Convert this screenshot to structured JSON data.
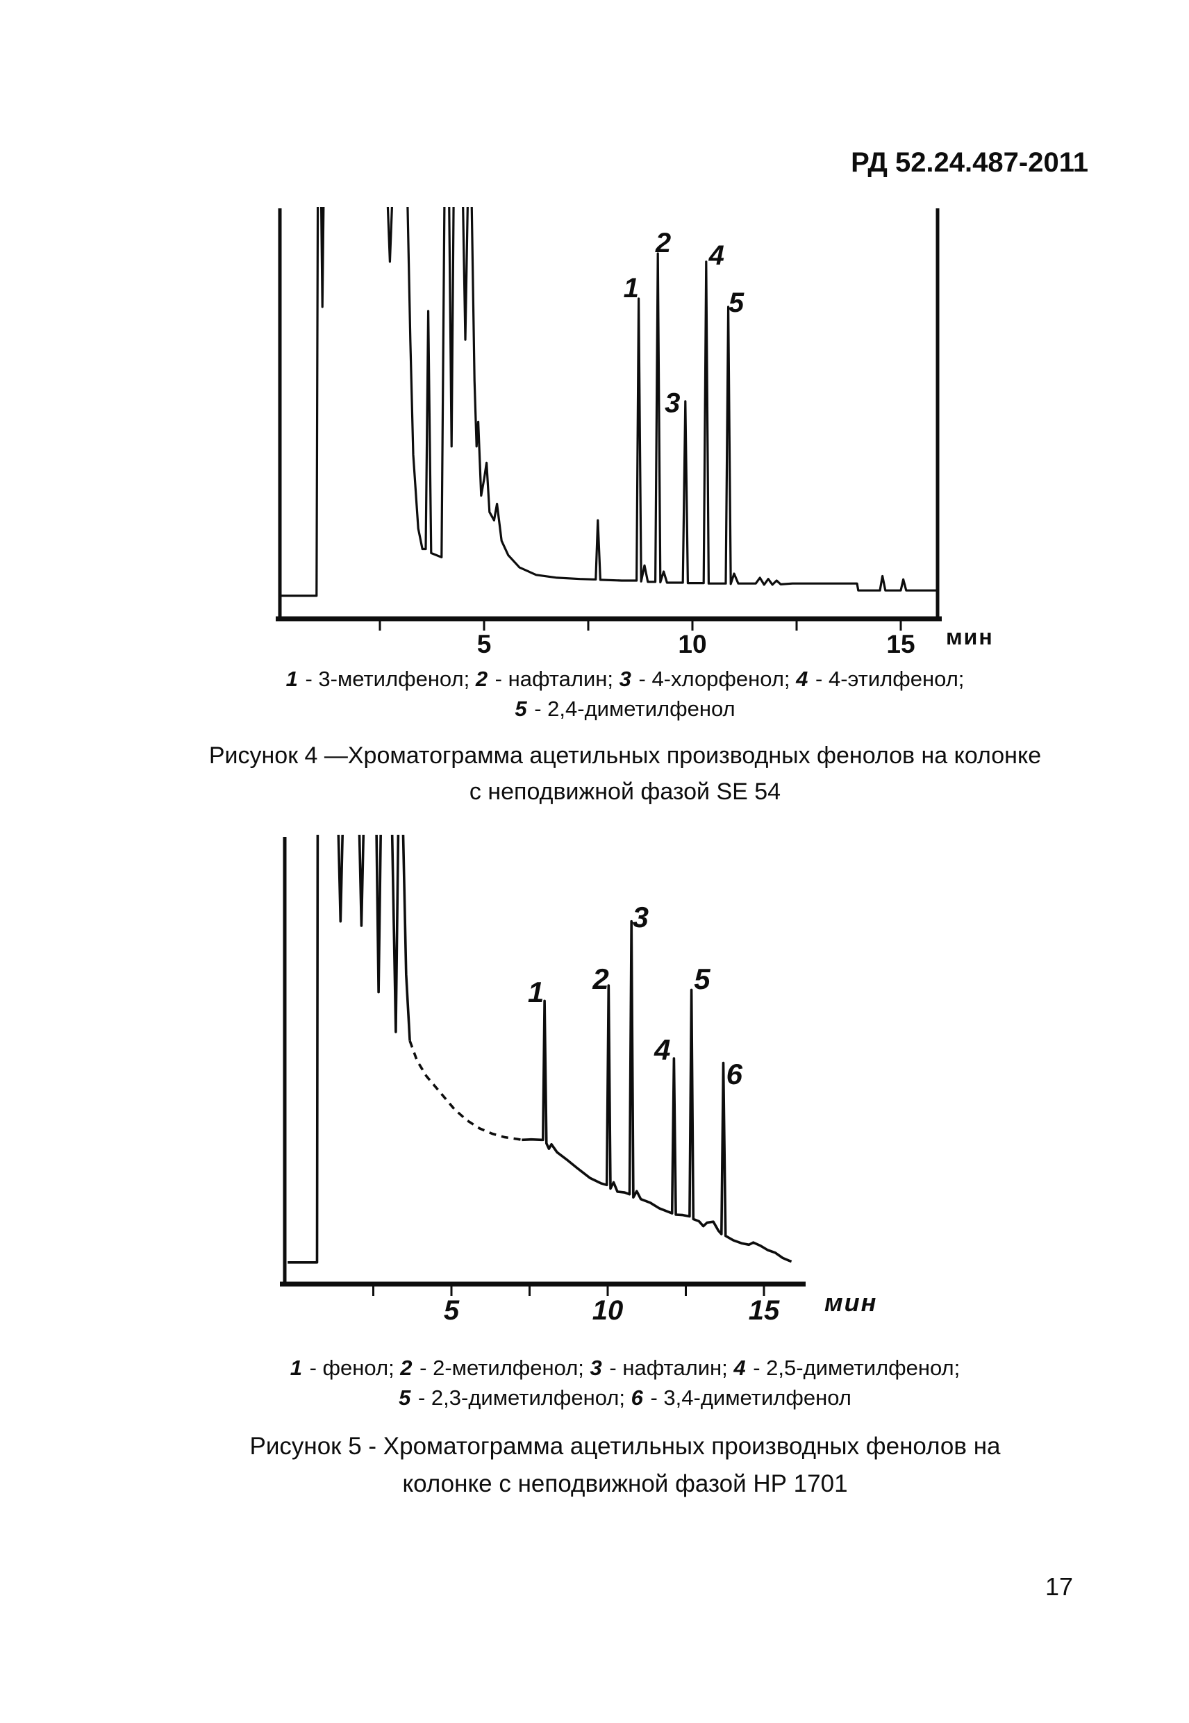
{
  "page": {
    "header": "РД 52.24.487-2011",
    "page_number": "17"
  },
  "figure4": {
    "legend_lines": [
      [
        {
          "num": "1",
          "name": "3-метилфенол"
        },
        {
          "num": "2",
          "name": "нафталин"
        },
        {
          "num": "3",
          "name": "4-хлорфенол"
        },
        {
          "num": "4",
          "name": "4-этилфенол"
        }
      ],
      [
        {
          "num": "5",
          "name": "2,4-диметилфенол"
        }
      ]
    ],
    "caption_lines": [
      "Рисунок 4 —Хроматограмма ацетильных производных фенолов на колонке",
      "с неподвижной фазой SE 54"
    ]
  },
  "figure5": {
    "legend_lines": [
      [
        {
          "num": "1",
          "name": "фенол"
        },
        {
          "num": "2",
          "name": "2-метилфенол"
        },
        {
          "num": "3",
          "name": "нафталин"
        },
        {
          "num": "4",
          "name": "2,5-диметилфенол"
        }
      ],
      [
        {
          "num": "5",
          "name": "2,3-диметилфенол"
        },
        {
          "num": "6",
          "name": "3,4-диметилфенол"
        }
      ]
    ],
    "caption_lines": [
      "Рисунок 5 - Хроматограмма ацетильных производных фенолов на",
      "колонке с неподвижной фазой НР 1701"
    ]
  },
  "chart_data": [
    {
      "type": "line",
      "title": "Рисунок 4 — Хроматограмма ацетильных производных фенолов на колонке с неподвижной фазой SE 54",
      "xlabel": "мин",
      "x_range": [
        0,
        16.0
      ],
      "grid": false,
      "x_ticks": [
        {
          "t": 2.5,
          "label": ""
        },
        {
          "t": 5,
          "label": "5"
        },
        {
          "t": 7.5,
          "label": ""
        },
        {
          "t": 10,
          "label": "10"
        },
        {
          "t": 12.5,
          "label": ""
        },
        {
          "t": 15,
          "label": "15"
        }
      ],
      "peaks": [
        {
          "label": "1",
          "compound": "3-метилфенол",
          "t_min": 8.7,
          "height_pct": 78
        },
        {
          "label": "2",
          "compound": "нафталин",
          "t_min": 9.2,
          "height_pct": 89
        },
        {
          "label": "3",
          "compound": "4-хлорфенол",
          "t_min": 9.8,
          "height_pct": 53
        },
        {
          "label": "4",
          "compound": "4-этилфенол",
          "t_min": 10.3,
          "height_pct": 87
        },
        {
          "label": "5",
          "compound": "2,4-диметилфенол",
          "t_min": 10.9,
          "height_pct": 76
        }
      ],
      "peak_labels": [
        {
          "label": "1",
          "t": 8.53,
          "h": 80.5
        },
        {
          "label": "2",
          "t": 9.3,
          "h": 91.5
        },
        {
          "label": "3",
          "t": 9.52,
          "h": 52.5
        },
        {
          "label": "4",
          "t": 10.58,
          "h": 88.5
        },
        {
          "label": "5",
          "t": 11.05,
          "h": 77
        }
      ],
      "trace_segments": [
        {
          "style": "solid",
          "points": [
            [
              0.12,
              5.6
            ],
            [
              0.98,
              5.6
            ],
            [
              1.01,
              103
            ],
            [
              1.09,
              103
            ],
            [
              1.12,
              76
            ],
            [
              1.15,
              103
            ],
            [
              2.68,
              103
            ],
            [
              2.74,
              87
            ],
            [
              2.8,
              103
            ],
            [
              3.16,
              103
            ],
            [
              3.23,
              68
            ],
            [
              3.3,
              40
            ],
            [
              3.42,
              22
            ],
            [
              3.52,
              17
            ],
            [
              3.6,
              17
            ],
            [
              3.66,
              75
            ],
            [
              3.73,
              16
            ],
            [
              3.98,
              15
            ],
            [
              4.05,
              103
            ],
            [
              4.16,
              103
            ],
            [
              4.22,
              42
            ],
            [
              4.27,
              103
            ],
            [
              4.49,
              103
            ],
            [
              4.55,
              68
            ],
            [
              4.61,
              103
            ],
            [
              4.7,
              103
            ],
            [
              4.77,
              58
            ],
            [
              4.82,
              42
            ],
            [
              4.86,
              48
            ],
            [
              4.93,
              30
            ],
            [
              5.0,
              34
            ],
            [
              5.06,
              38
            ],
            [
              5.13,
              26
            ],
            [
              5.24,
              24
            ],
            [
              5.31,
              28
            ],
            [
              5.42,
              19
            ],
            [
              5.58,
              15.5
            ],
            [
              5.85,
              12.5
            ],
            [
              6.25,
              10.7
            ],
            [
              6.75,
              10.0
            ],
            [
              7.3,
              9.7
            ],
            [
              7.62,
              9.6
            ],
            [
              7.68,
              9.6
            ],
            [
              7.73,
              24
            ],
            [
              7.79,
              9.5
            ],
            [
              8.3,
              9.3
            ],
            [
              8.6,
              9.3
            ],
            [
              8.66,
              9.3
            ],
            [
              8.71,
              78
            ],
            [
              8.77,
              9.1
            ],
            [
              8.85,
              13
            ],
            [
              8.93,
              9.0
            ],
            [
              9.11,
              9.0
            ],
            [
              9.17,
              89
            ],
            [
              9.23,
              8.9
            ],
            [
              9.31,
              11.5
            ],
            [
              9.39,
              8.8
            ],
            [
              9.77,
              8.8
            ],
            [
              9.83,
              53
            ],
            [
              9.89,
              8.7
            ],
            [
              10.27,
              8.7
            ],
            [
              10.33,
              87
            ],
            [
              10.39,
              8.6
            ],
            [
              10.8,
              8.6
            ],
            [
              10.86,
              76
            ],
            [
              10.92,
              8.5
            ],
            [
              11.0,
              11
            ],
            [
              11.1,
              8.6
            ],
            [
              11.52,
              8.6
            ],
            [
              11.62,
              10
            ],
            [
              11.72,
              8.3
            ],
            [
              11.82,
              9.7
            ],
            [
              11.92,
              8.3
            ],
            [
              12.02,
              9.3
            ],
            [
              12.12,
              8.4
            ],
            [
              12.4,
              8.6
            ],
            [
              13.5,
              8.6
            ],
            [
              13.95,
              8.6
            ],
            [
              13.98,
              6.9
            ],
            [
              14.5,
              6.9
            ],
            [
              14.56,
              10.4
            ],
            [
              14.63,
              6.9
            ],
            [
              15.0,
              6.9
            ],
            [
              15.06,
              9.6
            ],
            [
              15.13,
              6.9
            ],
            [
              15.85,
              6.9
            ]
          ]
        }
      ]
    },
    {
      "type": "line",
      "title": "Рисунок 5 - Хроматограмма ацетильных производных фенолов на колонке с неподвижной фазой НР 1701",
      "xlabel": "мин",
      "x_range": [
        0,
        16.0
      ],
      "grid": false,
      "x_ticks": [
        {
          "t": 2.5,
          "label": ""
        },
        {
          "t": 5,
          "label": "5"
        },
        {
          "t": 7.5,
          "label": ""
        },
        {
          "t": 10,
          "label": "10"
        },
        {
          "t": 12.5,
          "label": ""
        },
        {
          "t": 15,
          "label": "15"
        }
      ],
      "peaks": [
        {
          "label": "1",
          "compound": "фенол",
          "t_min": 8.0,
          "height_pct": 64
        },
        {
          "label": "2",
          "compound": "2-метилфенол",
          "t_min": 10.0,
          "height_pct": 67.5
        },
        {
          "label": "3",
          "compound": "нафталин",
          "t_min": 10.8,
          "height_pct": 82
        },
        {
          "label": "4",
          "compound": "2,5-диметилфенол",
          "t_min": 12.1,
          "height_pct": 51
        },
        {
          "label": "5",
          "compound": "2,3-диметилфенол",
          "t_min": 12.7,
          "height_pct": 66.5
        },
        {
          "label": "6",
          "compound": "3,4-диметилфенол",
          "t_min": 13.7,
          "height_pct": 50
        }
      ],
      "peak_labels": [
        {
          "label": "1",
          "t": 7.7,
          "h": 66
        },
        {
          "label": "2",
          "t": 9.78,
          "h": 69
        },
        {
          "label": "3",
          "t": 11.05,
          "h": 83
        },
        {
          "label": "4",
          "t": 11.75,
          "h": 53
        },
        {
          "label": "5",
          "t": 13.02,
          "h": 69
        },
        {
          "label": "6",
          "t": 14.05,
          "h": 47.5
        }
      ],
      "trace_segments": [
        {
          "style": "solid",
          "points": [
            [
              -0.24,
              4.9
            ],
            [
              0.7,
              4.9
            ],
            [
              0.72,
              103
            ],
            [
              1.38,
              103
            ],
            [
              1.45,
              82
            ],
            [
              1.52,
              103
            ],
            [
              2.05,
              103
            ],
            [
              2.12,
              81
            ],
            [
              2.19,
              103
            ],
            [
              2.6,
              103
            ],
            [
              2.67,
              66
            ],
            [
              2.74,
              103
            ],
            [
              3.1,
              103
            ],
            [
              3.22,
              57
            ],
            [
              3.3,
              103
            ],
            [
              3.45,
              103
            ],
            [
              3.55,
              70
            ],
            [
              3.67,
              55
            ]
          ]
        },
        {
          "style": "dashed",
          "points": [
            [
              3.67,
              55
            ],
            [
              3.9,
              50.5
            ],
            [
              4.2,
              47
            ],
            [
              4.5,
              44.5
            ],
            [
              4.8,
              42
            ],
            [
              5.1,
              39.5
            ],
            [
              5.5,
              37
            ],
            [
              5.9,
              35.2
            ],
            [
              6.3,
              34
            ],
            [
              6.7,
              33.2
            ],
            [
              7.1,
              32.8
            ],
            [
              7.25,
              32.6
            ]
          ]
        },
        {
          "style": "solid",
          "points": [
            [
              7.25,
              32.6
            ],
            [
              7.55,
              32.7
            ],
            [
              7.88,
              32.6
            ],
            [
              7.93,
              32.6
            ],
            [
              7.98,
              64
            ],
            [
              8.04,
              31.8
            ],
            [
              8.12,
              30.6
            ],
            [
              8.2,
              31.6
            ],
            [
              8.38,
              29.8
            ],
            [
              8.68,
              28.2
            ],
            [
              9.03,
              26.2
            ],
            [
              9.43,
              24.0
            ],
            [
              9.78,
              22.8
            ],
            [
              9.97,
              22.4
            ],
            [
              10.03,
              67.5
            ],
            [
              10.09,
              21.6
            ],
            [
              10.19,
              23
            ],
            [
              10.31,
              20.9
            ],
            [
              10.54,
              20.7
            ],
            [
              10.7,
              20.3
            ],
            [
              10.76,
              82
            ],
            [
              10.82,
              19.6
            ],
            [
              10.93,
              21
            ],
            [
              11.06,
              19.2
            ],
            [
              11.36,
              18.4
            ],
            [
              11.66,
              17.1
            ],
            [
              12.06,
              16.0
            ],
            [
              12.12,
              51
            ],
            [
              12.18,
              15.7
            ],
            [
              12.4,
              15.6
            ],
            [
              12.62,
              15.3
            ],
            [
              12.68,
              66.5
            ],
            [
              12.74,
              14.7
            ],
            [
              12.92,
              14.2
            ],
            [
              13.06,
              13.1
            ],
            [
              13.18,
              13.9
            ],
            [
              13.38,
              14.1
            ],
            [
              13.54,
              12.1
            ],
            [
              13.64,
              11.3
            ],
            [
              13.7,
              50
            ],
            [
              13.77,
              10.9
            ],
            [
              14.02,
              9.9
            ],
            [
              14.3,
              9.2
            ],
            [
              14.52,
              8.9
            ],
            [
              14.66,
              9.4
            ],
            [
              14.88,
              8.7
            ],
            [
              15.12,
              7.7
            ],
            [
              15.36,
              7.1
            ],
            [
              15.6,
              5.9
            ],
            [
              15.8,
              5.3
            ],
            [
              15.88,
              5.1
            ]
          ]
        }
      ]
    }
  ]
}
